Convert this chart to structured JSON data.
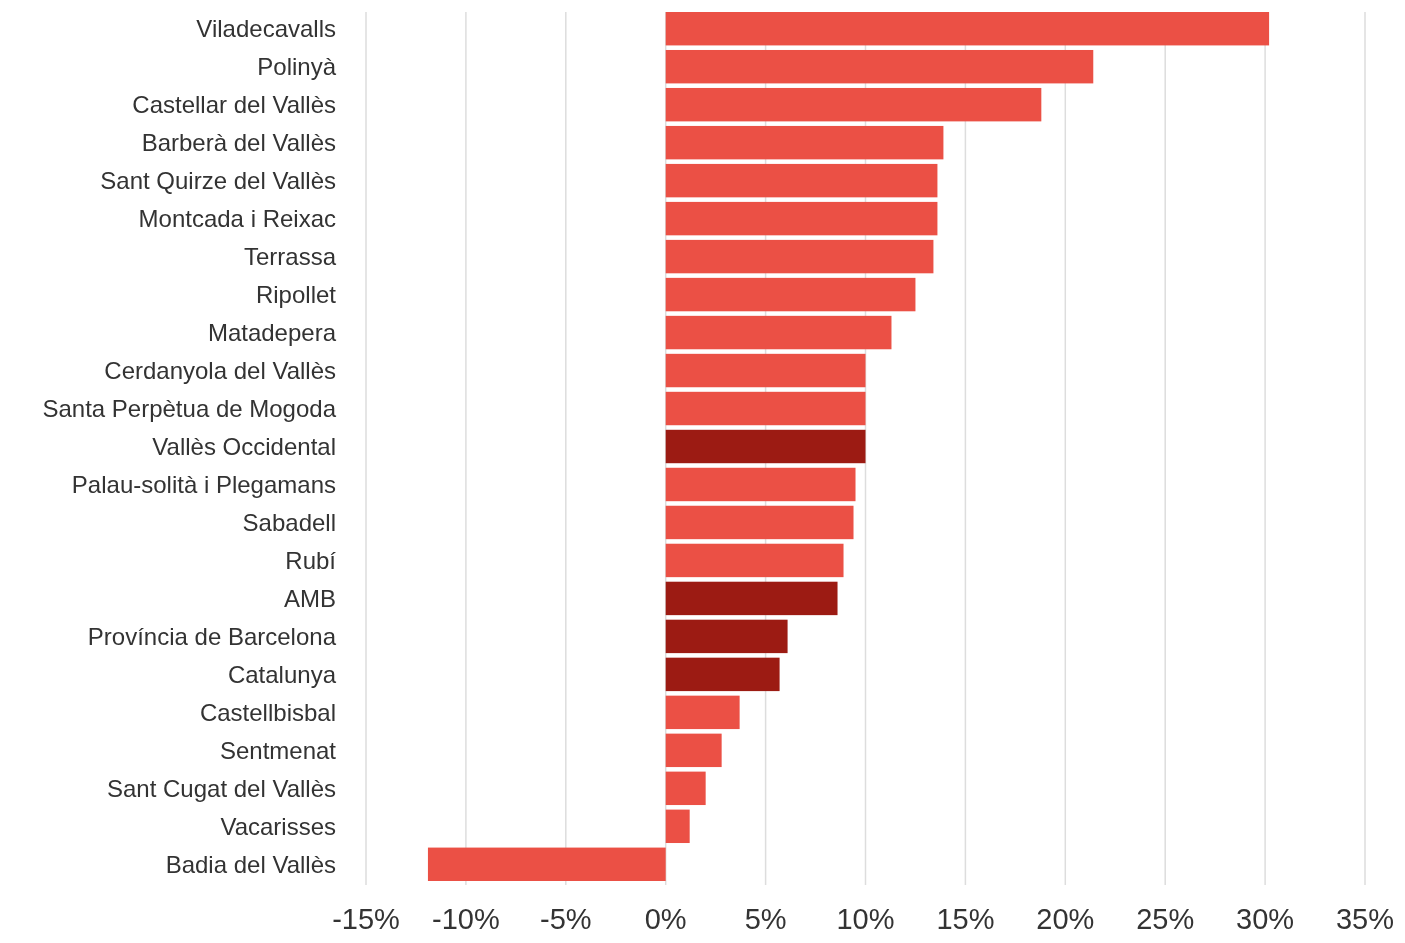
{
  "chart_data": {
    "type": "bar",
    "orientation": "horizontal",
    "categories": [
      "Viladecavalls",
      "Polinyà",
      "Castellar del Vallès",
      "Barberà del Vallès",
      "Sant Quirze del Vallès",
      "Montcada i Reixac",
      "Terrassa",
      "Ripollet",
      "Matadepera",
      "Cerdanyola del Vallès",
      "Santa Perpètua de Mogoda",
      "Vallès Occidental",
      "Palau-solità i Plegamans",
      "Sabadell",
      "Rubí",
      "AMB",
      "Província de Barcelona",
      "Catalunya",
      "Castellbisbal",
      "Sentmenat",
      "Sant Cugat del Vallès",
      "Vacarisses",
      "Badia del Vallès"
    ],
    "values": [
      30.2,
      21.4,
      18.8,
      13.9,
      13.6,
      13.6,
      13.4,
      12.5,
      11.3,
      10.0,
      10.0,
      10.0,
      9.5,
      9.4,
      8.9,
      8.6,
      6.1,
      5.7,
      3.7,
      2.8,
      2.0,
      1.2,
      -11.9
    ],
    "colors": [
      "#eb5045",
      "#eb5045",
      "#eb5045",
      "#eb5045",
      "#eb5045",
      "#eb5045",
      "#eb5045",
      "#eb5045",
      "#eb5045",
      "#eb5045",
      "#eb5045",
      "#9c1b13",
      "#eb5045",
      "#eb5045",
      "#eb5045",
      "#9c1b13",
      "#9c1b13",
      "#9c1b13",
      "#eb5045",
      "#eb5045",
      "#eb5045",
      "#eb5045",
      "#eb5045"
    ],
    "xlim": [
      -15,
      35
    ],
    "xticks": [
      {
        "value": -15,
        "label": "-15%"
      },
      {
        "value": -10,
        "label": "-10%"
      },
      {
        "value": -5,
        "label": "-5%"
      },
      {
        "value": 0,
        "label": "0%"
      },
      {
        "value": 5,
        "label": "5%"
      },
      {
        "value": 10,
        "label": "10%"
      },
      {
        "value": 15,
        "label": "15%"
      },
      {
        "value": 20,
        "label": "20%"
      },
      {
        "value": 25,
        "label": "25%"
      },
      {
        "value": 30,
        "label": "30%"
      },
      {
        "value": 35,
        "label": "35%"
      }
    ],
    "grid": "x"
  }
}
